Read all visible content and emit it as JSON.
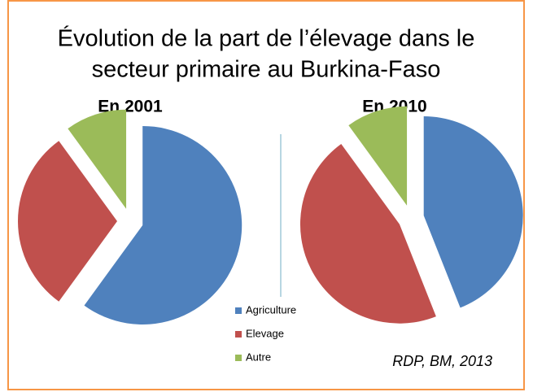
{
  "title": "Évolution de la part de l’élevage dans le secteur primaire au Burkina-Faso",
  "source": "RDP, BM, 2013",
  "chart_data": [
    {
      "type": "pie",
      "title": "En 2001",
      "categories": [
        "Agriculture",
        "Elevage",
        "Autre"
      ],
      "values": [
        60,
        30,
        10
      ],
      "colors": [
        "#4f81bd",
        "#c0504d",
        "#9bbb59"
      ]
    },
    {
      "type": "pie",
      "title": "En 2010",
      "categories": [
        "Agriculture",
        "Elevage",
        "Autre"
      ],
      "values": [
        44,
        46,
        10
      ],
      "colors": [
        "#4f81bd",
        "#c0504d",
        "#9bbb59"
      ]
    }
  ]
}
